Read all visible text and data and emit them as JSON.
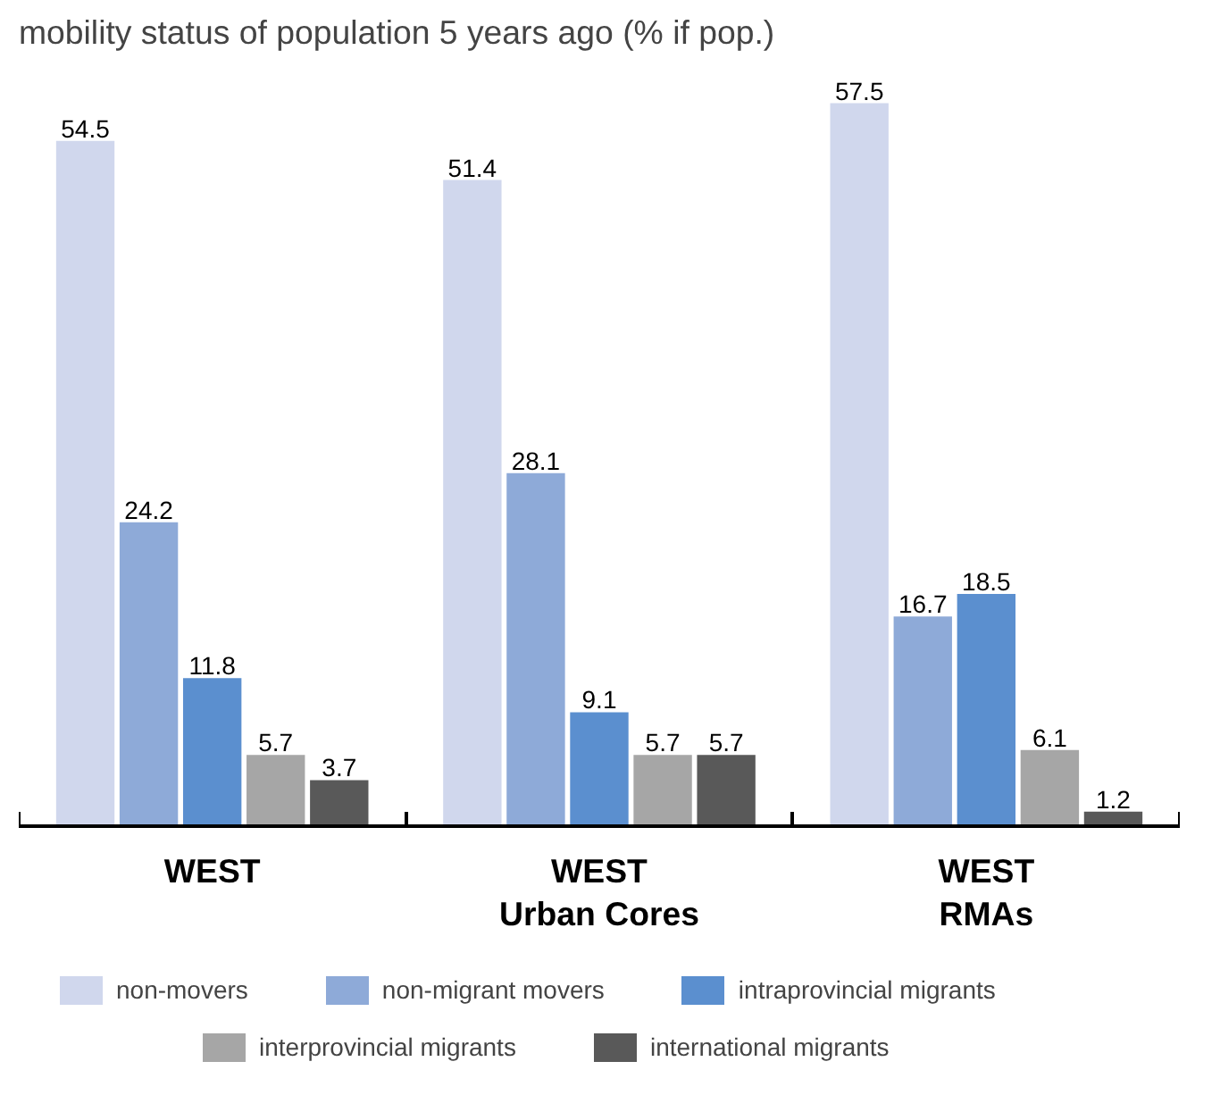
{
  "chart_data": {
    "type": "bar",
    "title": "mobility status of population 5 years ago (% if pop.)",
    "categories": [
      "WEST",
      "WEST\nUrban Cores",
      "WEST\nRMAs"
    ],
    "series": [
      {
        "name": "non-movers",
        "color": "#d0d7ed",
        "values": [
          54.5,
          51.4,
          57.5
        ]
      },
      {
        "name": "non-migrant movers",
        "color": "#8eaad8",
        "values": [
          24.2,
          28.1,
          16.7
        ]
      },
      {
        "name": "intraprovincial migrants",
        "color": "#5b8fcf",
        "values": [
          11.8,
          9.1,
          18.5
        ]
      },
      {
        "name": "interprovincial migrants",
        "color": "#a6a6a6",
        "values": [
          5.7,
          5.7,
          6.1
        ]
      },
      {
        "name": "international migrants",
        "color": "#595959",
        "values": [
          3.7,
          5.7,
          1.2
        ]
      }
    ],
    "data_labels": true,
    "legend": "bottom",
    "grid": false
  }
}
